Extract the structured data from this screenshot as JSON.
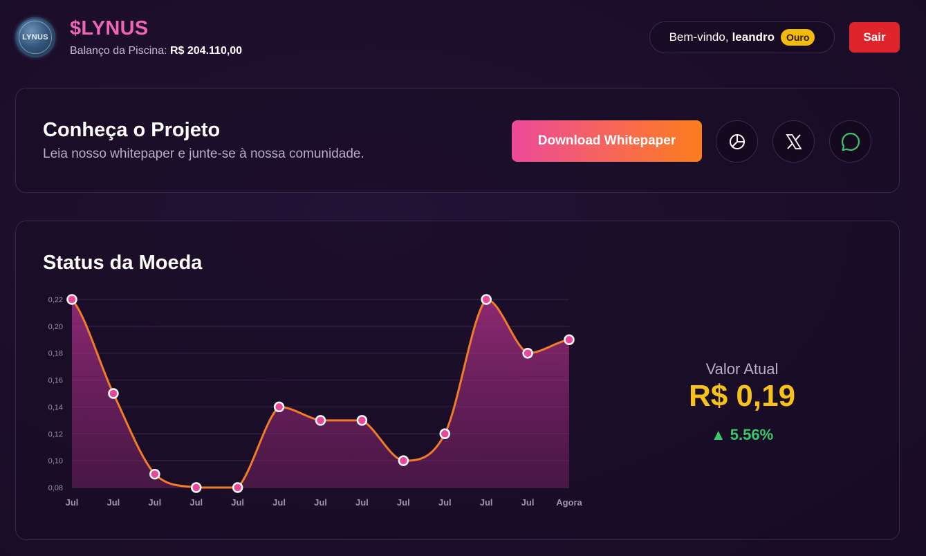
{
  "header": {
    "logo_text": "LYNUS",
    "title": "$LYNUS",
    "pool_label": "Balanço da Piscina:",
    "pool_value": "R$ 204.110,00",
    "welcome_label": "Bem-vindo,",
    "username": "leandro",
    "tier_badge": "Ouro",
    "logout_label": "Sair"
  },
  "project": {
    "title": "Conheça o Projeto",
    "subtitle": "Leia nosso whitepaper e junte-se à nossa comunidade.",
    "download_label": "Download Whitepaper",
    "socials": [
      "pie-chart-icon",
      "x-icon",
      "chat-bubble-icon"
    ]
  },
  "status": {
    "title": "Status da Moeda",
    "current_label": "Valor Atual",
    "current_value": "R$ 0,19",
    "change": "▲ 5.56%"
  },
  "colors": {
    "brand": "#f064b4",
    "line": "#f07c28",
    "point": "#e8489a",
    "value": "#f6c21a",
    "positive": "#38c96a",
    "logout": "#e0242c",
    "badge": "#f2b90f"
  },
  "chart_data": {
    "type": "area",
    "categories": [
      "Jul",
      "Jul",
      "Jul",
      "Jul",
      "Jul",
      "Jul",
      "Jul",
      "Jul",
      "Jul",
      "Jul",
      "Jul",
      "Jul",
      "Agora"
    ],
    "values": [
      0.22,
      0.15,
      0.09,
      0.08,
      0.08,
      0.14,
      0.13,
      0.13,
      0.1,
      0.12,
      0.22,
      0.18,
      0.19
    ],
    "ylim": [
      0.08,
      0.22
    ],
    "yticks": [
      "0,22",
      "0,20",
      "0,18",
      "0,16",
      "0,14",
      "0,12",
      "0,10",
      "0,08"
    ],
    "grid": true
  }
}
